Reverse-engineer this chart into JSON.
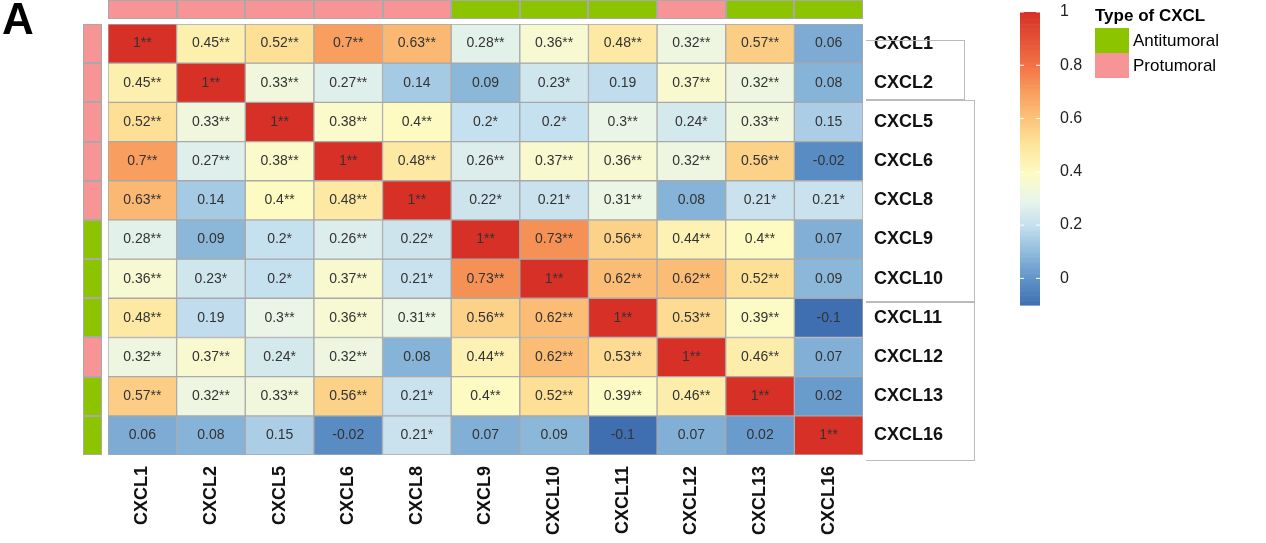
{
  "chart_data": {
    "type": "heatmap",
    "title": "A",
    "legend_title": "Type of CXCL",
    "categories": [
      "CXCL1",
      "CXCL2",
      "CXCL5",
      "CXCL6",
      "CXCL8",
      "CXCL9",
      "CXCL10",
      "CXCL11",
      "CXCL12",
      "CXCL13",
      "CXCL16"
    ],
    "y_categories": [
      "CXCL1",
      "CXCL2",
      "CXCL5",
      "CXCL6",
      "CXCL8",
      "CXCL9",
      "CXCL10",
      "CXCL11",
      "CXCL12",
      "CXCL13",
      "CXCL16"
    ],
    "colors": [
      "#f79495",
      "#f79495",
      "#f79495",
      "#f79495",
      "#f79495",
      "#8cc400",
      "#8cc400",
      "#8cc400",
      "#f79495",
      "#8cc400",
      "#8cc400"
    ],
    "annotations": [
      "Antitumoral",
      "Protumoral"
    ],
    "cells": [
      [
        1,
        0.45,
        0.52,
        0.7,
        0.63,
        0.28,
        0.36,
        0.48,
        0.32,
        0.57,
        0.06
      ],
      [
        0.45,
        1,
        0.33,
        0.27,
        0.14,
        0.09,
        0.23,
        0.19,
        0.37,
        0.32,
        0.08
      ],
      [
        0.52,
        0.33,
        1,
        0.38,
        0.4,
        0.2,
        0.2,
        0.3,
        0.24,
        0.33,
        0.15
      ],
      [
        0.7,
        0.27,
        0.38,
        1,
        0.48,
        0.26,
        0.37,
        0.36,
        0.32,
        0.56,
        -0.02
      ],
      [
        0.63,
        0.14,
        0.4,
        0.48,
        1,
        0.22,
        0.21,
        0.31,
        0.08,
        0.21,
        0.21
      ],
      [
        0.28,
        0.09,
        0.2,
        0.26,
        0.22,
        1,
        0.73,
        0.56,
        0.44,
        0.4,
        0.07
      ],
      [
        0.36,
        0.23,
        0.2,
        0.37,
        0.21,
        0.73,
        1,
        0.62,
        0.62,
        0.52,
        0.09
      ],
      [
        0.48,
        0.19,
        0.3,
        0.36,
        0.31,
        0.56,
        0.62,
        1,
        0.53,
        0.39,
        -0.1
      ],
      [
        0.32,
        0.37,
        0.24,
        0.32,
        0.08,
        0.44,
        0.62,
        0.53,
        1,
        0.46,
        0.07
      ],
      [
        0.57,
        0.32,
        0.33,
        0.56,
        0.21,
        0.4,
        0.52,
        0.39,
        0.46,
        1,
        0.02
      ],
      [
        0.06,
        0.08,
        0.15,
        -0.02,
        0.21,
        0.07,
        0.09,
        -0.1,
        0.07,
        0.02,
        1
      ]
    ],
    "cell_labels": [
      [
        "1**",
        "0.45**",
        "0.52**",
        "0.7**",
        "0.63**",
        "0.28**",
        "0.36**",
        "0.48**",
        "0.32**",
        "0.57**",
        "0.06"
      ],
      [
        "0.45**",
        "1**",
        "0.33**",
        "0.27**",
        "0.14",
        "0.09",
        "0.23*",
        "0.19",
        "0.37**",
        "0.32**",
        "0.08"
      ],
      [
        "0.52**",
        "0.33**",
        "1**",
        "0.38**",
        "0.4**",
        "0.2*",
        "0.2*",
        "0.3**",
        "0.24*",
        "0.33**",
        "0.15"
      ],
      [
        "0.7**",
        "0.27**",
        "0.38**",
        "1**",
        "0.48**",
        "0.26**",
        "0.37**",
        "0.36**",
        "0.32**",
        "0.56**",
        "-0.02"
      ],
      [
        "0.63**",
        "0.14",
        "0.4**",
        "0.48**",
        "1**",
        "0.22*",
        "0.21*",
        "0.31**",
        "0.08",
        "0.21*",
        "0.21*"
      ],
      [
        "0.28**",
        "0.09",
        "0.2*",
        "0.26**",
        "0.22*",
        "1**",
        "0.73**",
        "0.56**",
        "0.44**",
        "0.4**",
        "0.07"
      ],
      [
        "0.36**",
        "0.23*",
        "0.2*",
        "0.37**",
        "0.21*",
        "0.73**",
        "1**",
        "0.62**",
        "0.62**",
        "0.52**",
        "0.09"
      ],
      [
        "0.48**",
        "0.19",
        "0.3**",
        "0.36**",
        "0.31**",
        "0.56**",
        "0.62**",
        "1**",
        "0.53**",
        "0.39**",
        "-0.1"
      ],
      [
        "0.32**",
        "0.37**",
        "0.24*",
        "0.32**",
        "0.08",
        "0.44**",
        "0.62**",
        "0.53**",
        "1**",
        "0.46**",
        "0.07"
      ],
      [
        "0.57**",
        "0.32**",
        "0.33**",
        "0.56**",
        "0.21*",
        "0.4**",
        "0.52**",
        "0.39**",
        "0.46**",
        "1**",
        "0.02"
      ],
      [
        "0.06",
        "0.08",
        "0.15",
        "-0.02",
        "0.21*",
        "0.07",
        "0.09",
        "-0.1",
        "0.07",
        "0.02",
        "1**"
      ]
    ],
    "clim": [
      -0.1,
      1
    ],
    "cticks": [
      0,
      0.2,
      0.4,
      0.6,
      0.8,
      1
    ]
  }
}
